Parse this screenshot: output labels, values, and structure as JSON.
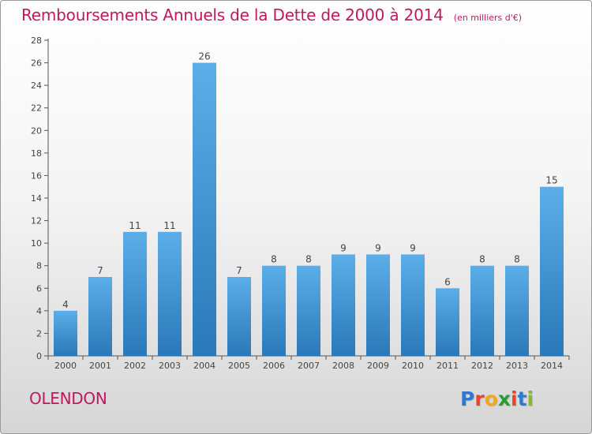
{
  "title": "Remboursements Annuels de la Dette de 2000 à 2014",
  "subtitle": "(en milliers d'€)",
  "place": "OLENDON",
  "logo": {
    "letters": [
      "P",
      "r",
      "o",
      "x",
      "i",
      "t",
      "i"
    ],
    "colors": [
      "#2a7bd6",
      "#e8442f",
      "#f2a81d",
      "#2a9a3a",
      "#e8442f",
      "#2a7bd6",
      "#8ab82c"
    ]
  },
  "colors": {
    "title": "#c0175d",
    "bar_top": "#5caee8",
    "bar_bottom": "#2a78b8",
    "axis": "#555555",
    "grid": "#cccccc"
  },
  "chart_data": {
    "type": "bar",
    "title": "Remboursements Annuels de la Dette de 2000 à 2014",
    "xlabel": "",
    "ylabel": "",
    "categories": [
      "2000",
      "2001",
      "2002",
      "2003",
      "2004",
      "2005",
      "2006",
      "2007",
      "2008",
      "2009",
      "2010",
      "2011",
      "2012",
      "2013",
      "2014"
    ],
    "values": [
      4,
      7,
      11,
      11,
      26,
      7,
      8,
      8,
      9,
      9,
      9,
      6,
      8,
      8,
      15
    ],
    "ylim": [
      0,
      28
    ],
    "yticks": [
      0,
      2,
      4,
      6,
      8,
      10,
      12,
      14,
      16,
      18,
      20,
      22,
      24,
      26,
      28
    ],
    "grid": false
  }
}
